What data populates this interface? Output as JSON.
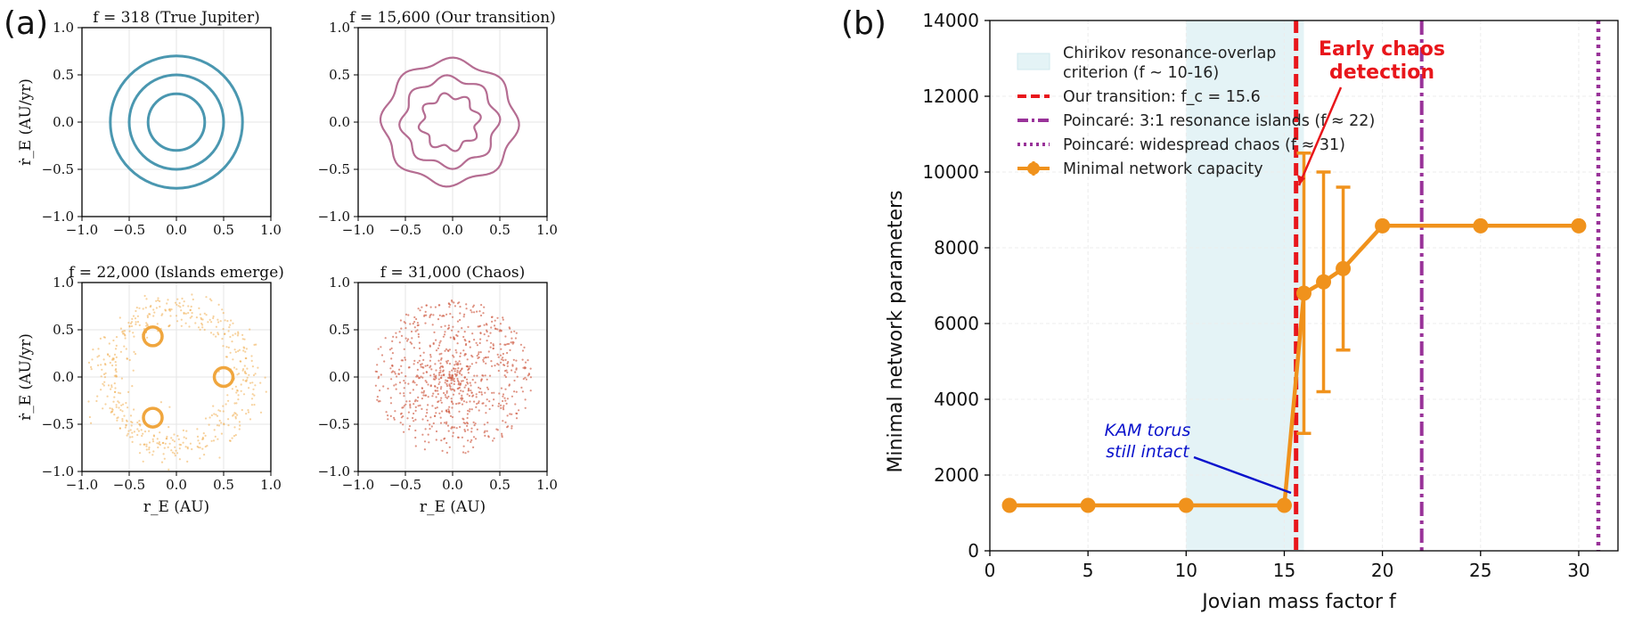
{
  "panel_a": {
    "label": "(a)",
    "subplots": [
      {
        "title": "f = 318 (True Jupiter)",
        "color": "#4a97b0",
        "kind": "circles",
        "radii": [
          0.3,
          0.5,
          0.7
        ],
        "ylabel": "ṙ_E (AU/yr)",
        "xlabel": "",
        "xticks": [
          "−1.0",
          "−0.5",
          "0.0",
          "0.5",
          "1.0"
        ],
        "yticks": [
          "1.0",
          "0.5",
          "0.0",
          "−0.5",
          "−1.0"
        ]
      },
      {
        "title": "f = 15,600 (Our transition)",
        "color": "#b56d92",
        "kind": "wavy",
        "radii": [
          0.3,
          0.5,
          0.7
        ],
        "ylabel": "",
        "xlabel": "",
        "xticks": [
          "−1.0",
          "−0.5",
          "0.0",
          "0.5",
          "1.0"
        ],
        "yticks": [
          "1.0",
          "0.5",
          "0.0",
          "−0.5",
          "−1.0"
        ]
      },
      {
        "title": "f = 22,000 (Islands emerge)",
        "color": "#f0a63e",
        "kind": "islands",
        "islands": [
          [
            -0.25,
            0.43
          ],
          [
            0.5,
            0.0
          ],
          [
            -0.25,
            -0.43
          ]
        ],
        "ylabel": "ṙ_E (AU/yr)",
        "xlabel": "r_E (AU)",
        "xticks": [
          "−1.0",
          "−0.5",
          "0.0",
          "0.5",
          "1.0"
        ],
        "yticks": [
          "1.0",
          "0.5",
          "0.0",
          "−0.5",
          "−1.0"
        ]
      },
      {
        "title": "f = 31,000 (Chaos)",
        "color": "#d2654e",
        "kind": "chaos",
        "ylabel": "",
        "xlabel": "r_E (AU)",
        "xticks": [
          "−1.0",
          "−0.5",
          "0.0",
          "0.5",
          "1.0"
        ],
        "yticks": [
          "1.0",
          "0.5",
          "0.0",
          "−0.5",
          "−1.0"
        ]
      }
    ]
  },
  "panel_b": {
    "label": "(b)",
    "xlabel": "Jovian mass factor f",
    "ylabel": "Minimal network parameters",
    "legend": [
      "Chirikov resonance-overlap",
      "criterion (f ~ 10-16)",
      "Our transition: f_c = 15.6",
      "Poincaré: 3:1 resonance islands (f ≈ 22)",
      "Poincaré: widespread chaos (f ≈ 31)",
      "Minimal network capacity"
    ],
    "annotation_red": [
      "Early chaos",
      "detection"
    ],
    "annotation_blue": [
      "KAM torus",
      "still intact"
    ],
    "colors": {
      "series": "#f0921c",
      "transition": "#e8161b",
      "poincare": "#993399",
      "shade": "#e4f3f6",
      "blue": "#0a12cc"
    }
  },
  "chart_data": {
    "type": "line",
    "title": "",
    "xlabel": "Jovian mass factor f",
    "ylabel": "Minimal network parameters",
    "xlim": [
      0,
      32
    ],
    "ylim": [
      0,
      14000
    ],
    "xticks": [
      0,
      5,
      10,
      15,
      20,
      25,
      30
    ],
    "yticks": [
      0,
      2000,
      4000,
      6000,
      8000,
      10000,
      12000,
      14000
    ],
    "shaded_region": [
      10,
      16
    ],
    "vlines": [
      {
        "x": 15.6,
        "style": "dashed",
        "label": "Our transition: f_c = 15.6"
      },
      {
        "x": 22,
        "style": "dashdot",
        "label": "Poincaré: 3:1 resonance islands (f ≈ 22)"
      },
      {
        "x": 31,
        "style": "dotted",
        "label": "Poincaré: widespread chaos (f ≈ 31)"
      }
    ],
    "series": [
      {
        "name": "Minimal network capacity",
        "x": [
          1,
          5,
          10,
          15,
          16,
          17,
          18,
          20,
          25,
          30
        ],
        "y": [
          1200,
          1200,
          1200,
          1200,
          6800,
          7100,
          7450,
          8580,
          8580,
          8580
        ],
        "err": [
          0,
          0,
          0,
          0,
          3700,
          2900,
          2150,
          0,
          0,
          0
        ]
      }
    ],
    "annotations": [
      {
        "text": "Early chaos detection",
        "xy": [
          15.7,
          9700
        ]
      },
      {
        "text": "KAM torus still intact",
        "xy": [
          15.2,
          1500
        ]
      }
    ]
  }
}
